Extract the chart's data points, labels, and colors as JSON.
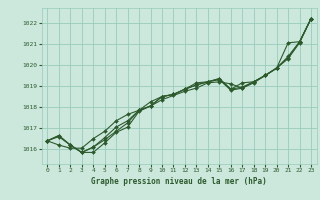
{
  "title": "Graphe pression niveau de la mer (hPa)",
  "bg_color": "#cce8dd",
  "grid_color": "#99ccbb",
  "line_color": "#2d5a2d",
  "marker_color": "#2d5a2d",
  "xlim": [
    -0.5,
    23.5
  ],
  "ylim": [
    1015.3,
    1022.7
  ],
  "yticks": [
    1016,
    1017,
    1018,
    1019,
    1020,
    1021,
    1022
  ],
  "xticks": [
    0,
    1,
    2,
    3,
    4,
    5,
    6,
    7,
    8,
    9,
    10,
    11,
    12,
    13,
    14,
    15,
    16,
    17,
    18,
    19,
    20,
    21,
    22,
    23
  ],
  "series": [
    [
      1016.4,
      1016.6,
      1016.2,
      1015.85,
      1015.85,
      1016.3,
      1016.8,
      1017.05,
      1017.8,
      1018.05,
      1018.5,
      1018.6,
      1018.85,
      1019.15,
      1019.2,
      1019.3,
      1018.8,
      1018.9,
      1019.15,
      1019.5,
      1019.85,
      1021.05,
      1021.1,
      1022.2
    ],
    [
      1016.4,
      1016.2,
      1016.05,
      1016.05,
      1016.5,
      1016.85,
      1017.35,
      1017.65,
      1017.85,
      1018.05,
      1018.35,
      1018.55,
      1018.75,
      1018.9,
      1019.15,
      1019.2,
      1019.1,
      1018.9,
      1019.2,
      1019.5,
      1019.85,
      1020.3,
      1021.05,
      1022.2
    ],
    [
      1016.4,
      1016.65,
      1016.2,
      1015.85,
      1016.1,
      1016.55,
      1017.05,
      1017.35,
      1017.85,
      1018.05,
      1018.5,
      1018.6,
      1018.85,
      1019.05,
      1019.2,
      1019.35,
      1018.85,
      1018.95,
      1019.2,
      1019.5,
      1019.85,
      1020.35,
      1021.1,
      1022.2
    ],
    [
      1016.4,
      1016.65,
      1016.2,
      1015.85,
      1016.1,
      1016.45,
      1016.85,
      1017.25,
      1017.85,
      1018.25,
      1018.5,
      1018.6,
      1018.85,
      1019.05,
      1019.2,
      1019.35,
      1018.85,
      1019.15,
      1019.2,
      1019.5,
      1019.85,
      1020.4,
      1021.1,
      1022.2
    ]
  ]
}
